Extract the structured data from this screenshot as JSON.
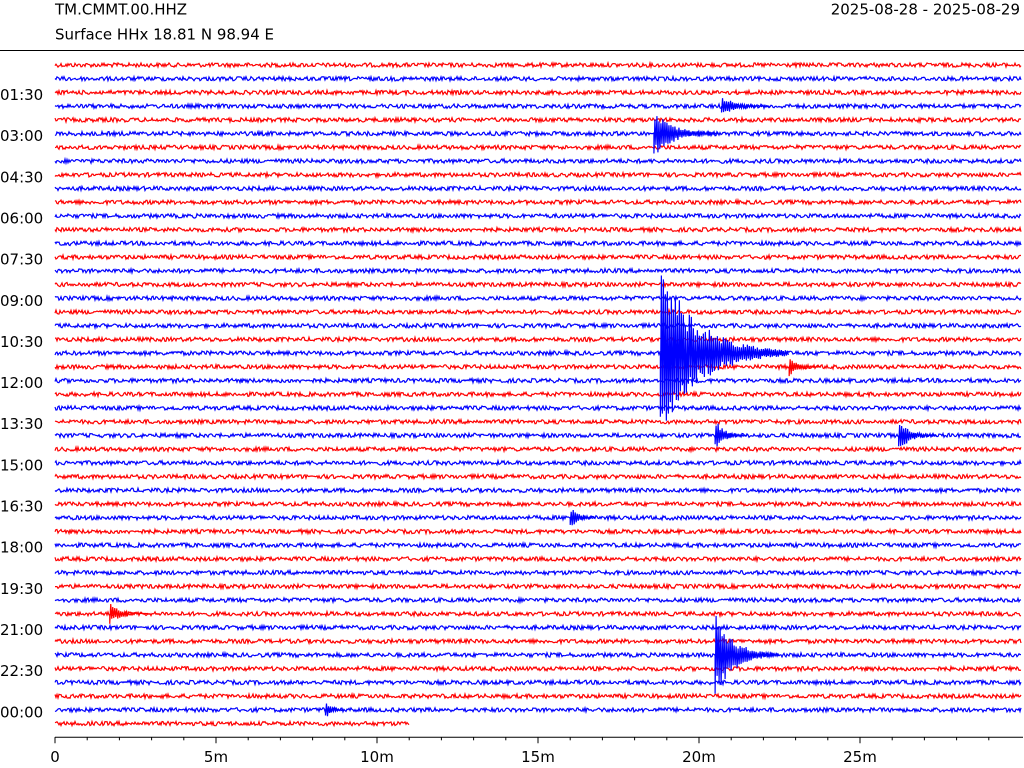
{
  "chart_data": {
    "type": "helicorder",
    "title": "TM.CMMT.00.HHZ",
    "subtitle": "Surface HHx  18.81 N 98.94 E",
    "date_range": "2025-08-28 - 2025-08-29",
    "xlim": [
      0,
      30
    ],
    "xticks": [
      0,
      {
        "value": 5,
        "label": "5m"
      },
      {
        "value": 10,
        "label": "10m"
      },
      {
        "value": 15,
        "label": "15m"
      },
      {
        "value": 20,
        "label": "20m"
      },
      {
        "value": 25,
        "label": "25m"
      }
    ],
    "ylim": [
      0,
      25
    ],
    "yticks": [
      {
        "value": 1.5,
        "label": "01:30"
      },
      {
        "value": 3,
        "label": "03:00"
      },
      {
        "value": 4.5,
        "label": "04:30"
      },
      {
        "value": 6,
        "label": "06:00"
      },
      {
        "value": 7.5,
        "label": "07:30"
      },
      {
        "value": 9,
        "label": "09:00"
      },
      {
        "value": 10.5,
        "label": "10:30"
      },
      {
        "value": 12,
        "label": "12:00"
      },
      {
        "value": 13.5,
        "label": "13:30"
      },
      {
        "value": 15,
        "label": "15:00"
      },
      {
        "value": 16.5,
        "label": "16:30"
      },
      {
        "value": 18,
        "label": "18:00"
      },
      {
        "value": 19.5,
        "label": "19:30"
      },
      {
        "value": 21,
        "label": "21:00"
      },
      {
        "value": 22.5,
        "label": "22:30"
      },
      {
        "value": 24,
        "label": "00:00"
      }
    ],
    "trace_interval_hours": 0.5,
    "last_trace_end": 11,
    "colors": [
      "#ff0000",
      "#0000ff"
    ],
    "events": [
      {
        "hour": 2.0,
        "minute": 20.7,
        "amplitude": 0.4,
        "duration": 1.5
      },
      {
        "hour": 3.0,
        "minute": 18.6,
        "amplitude": 0.9,
        "duration": 2
      },
      {
        "hour": 11.0,
        "minute": 18.8,
        "amplitude": 3.3,
        "duration": 4
      },
      {
        "hour": 11.5,
        "minute": 22.8,
        "amplitude": 0.35,
        "duration": 1
      },
      {
        "hour": 14.0,
        "minute": 20.5,
        "amplitude": 0.6,
        "duration": 1
      },
      {
        "hour": 14.0,
        "minute": 26.2,
        "amplitude": 0.6,
        "duration": 1.2
      },
      {
        "hour": 17.0,
        "minute": 16.0,
        "amplitude": 0.45,
        "duration": 0.8
      },
      {
        "hour": 20.5,
        "minute": 1.7,
        "amplitude": 0.4,
        "duration": 1.2
      },
      {
        "hour": 22.0,
        "minute": 20.5,
        "amplitude": 1.6,
        "duration": 2
      },
      {
        "hour": 24.0,
        "minute": 8.4,
        "amplitude": 0.4,
        "duration": 0.6
      }
    ]
  }
}
